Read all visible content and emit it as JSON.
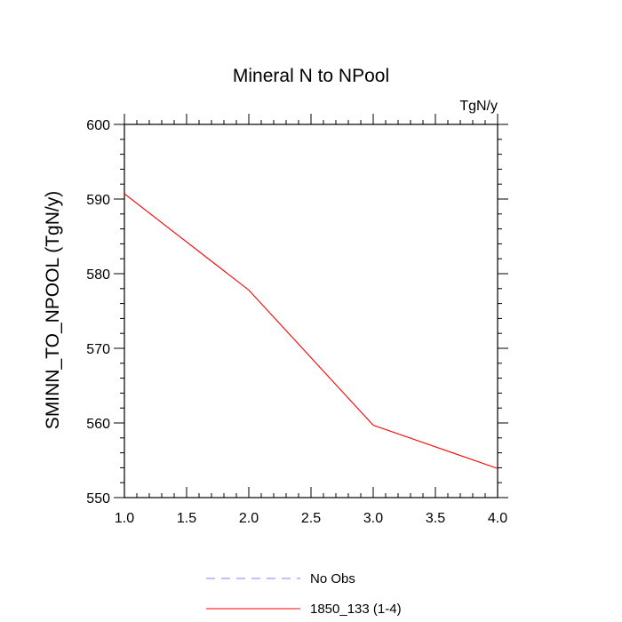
{
  "chart_data": {
    "type": "line",
    "title": "Mineral N to NPool",
    "units_label": "TgN/y",
    "xlabel": "",
    "ylabel": "SMINN_TO_NPOOL  (TgN/y)",
    "xlim": [
      1.0,
      4.0
    ],
    "ylim": [
      550,
      600
    ],
    "x_ticks": [
      "1.0",
      "1.5",
      "2.0",
      "2.5",
      "3.0",
      "3.5",
      "4.0"
    ],
    "y_ticks": [
      "550",
      "560",
      "570",
      "580",
      "590",
      "600"
    ],
    "grid": false,
    "legend_position": "bottom",
    "series": [
      {
        "name": "No Obs",
        "color": "#8080ff",
        "dash": "dashed",
        "x": [],
        "y": []
      },
      {
        "name": "1850_133 (1-4)",
        "color": "#ff0000",
        "dash": "solid",
        "x": [
          1.0,
          2.0,
          3.0,
          4.0
        ],
        "y": [
          590.7,
          577.8,
          559.7,
          553.9
        ]
      }
    ]
  }
}
